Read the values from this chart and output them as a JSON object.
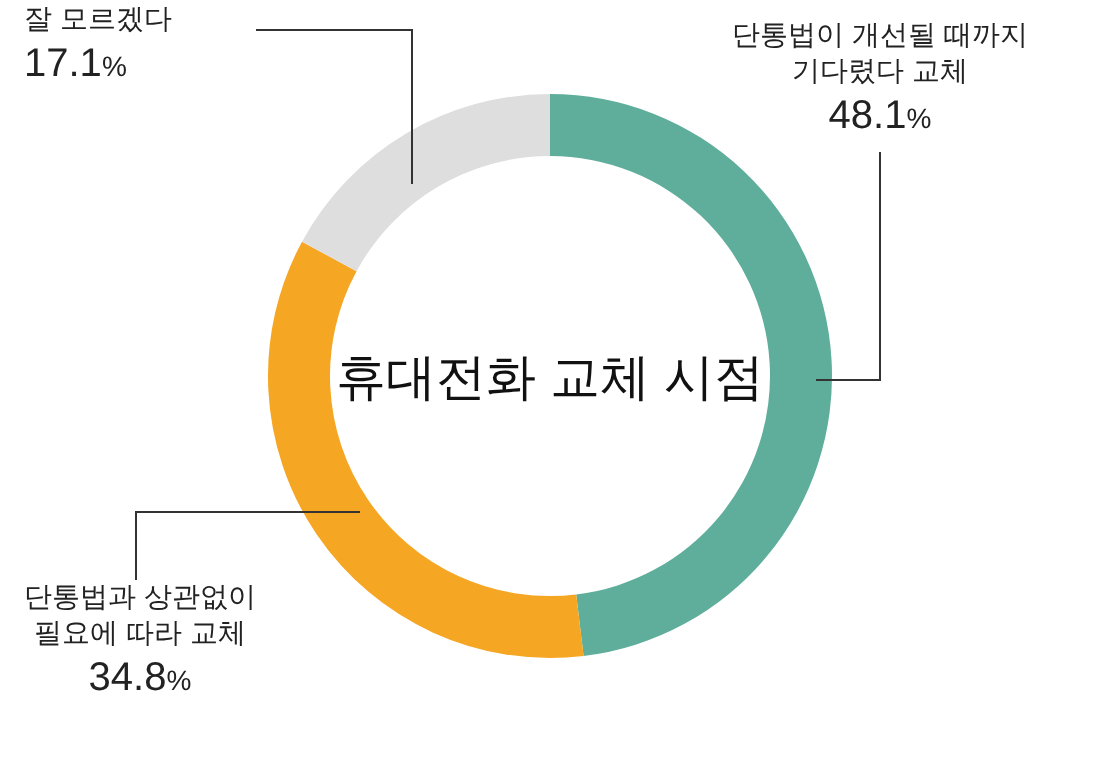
{
  "chart_data": {
    "type": "donut",
    "title": "휴대전화 교체 시점",
    "categories": [
      "단통법이 개선될 때까지\n기다렸다 교체",
      "단통법과 상관없이\n필요에 따라 교체",
      "잘 모르겠다"
    ],
    "values": [
      48.1,
      34.8,
      17.1
    ],
    "colors": [
      "#5fae9b",
      "#f5a623",
      "#dedede"
    ],
    "value_labels": [
      "48.1%",
      "34.8%",
      "17.1%"
    ]
  }
}
